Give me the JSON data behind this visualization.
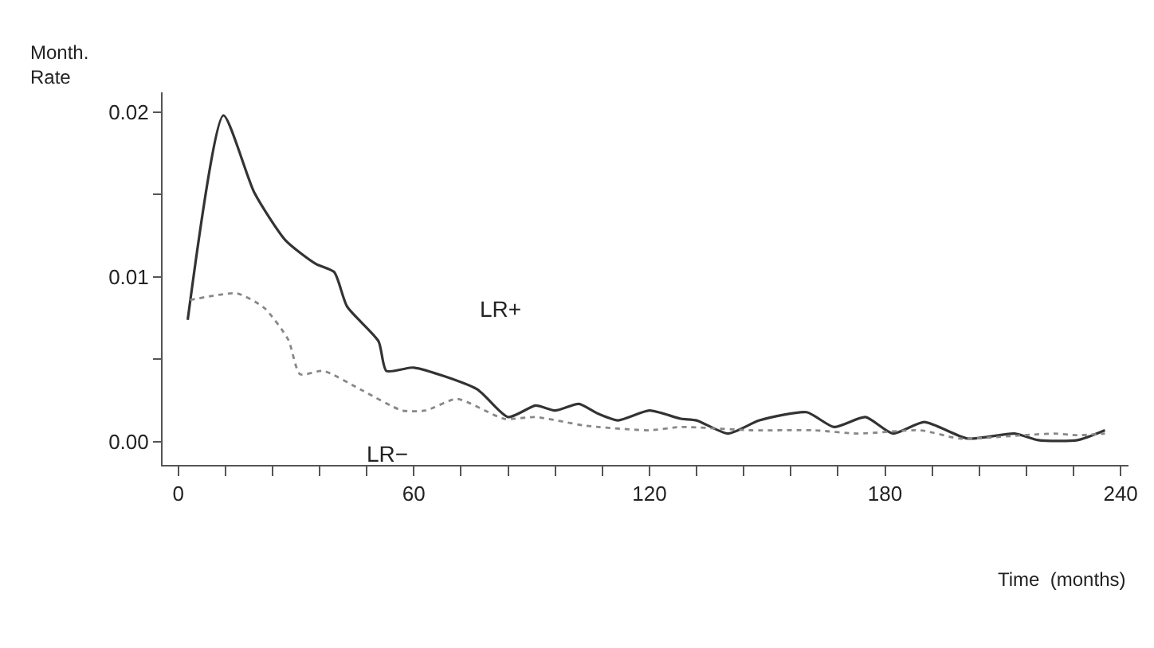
{
  "chart_data": {
    "type": "line",
    "xlabel": "Time  (months)",
    "ylabel": "Month.\nRate",
    "xlim": [
      -4,
      242
    ],
    "ylim": [
      -0.0014,
      0.0212
    ],
    "xticks": [
      0,
      {
        "value": 12,
        "label": null
      },
      {
        "value": 24,
        "label": null
      },
      {
        "value": 36,
        "label": null
      },
      {
        "value": 48,
        "label": null
      },
      60,
      {
        "value": 72,
        "label": null
      },
      {
        "value": 84,
        "label": null
      },
      {
        "value": 96,
        "label": null
      },
      {
        "value": 108,
        "label": null
      },
      120,
      {
        "value": 132,
        "label": null
      },
      {
        "value": 144,
        "label": null
      },
      {
        "value": 156,
        "label": null
      },
      {
        "value": 168,
        "label": null
      },
      180,
      {
        "value": 192,
        "label": null
      },
      {
        "value": 204,
        "label": null
      },
      {
        "value": 216,
        "label": null
      },
      {
        "value": 228,
        "label": null
      },
      240
    ],
    "yticks": [
      {
        "value": 0,
        "label": "0.00"
      },
      {
        "value": 0.005,
        "label": null
      },
      0.01,
      {
        "value": 0.015,
        "label": null
      },
      0.02
    ],
    "legend": false,
    "marker": "none",
    "series": [
      {
        "name": "LR+",
        "color": "#333333",
        "line_style": "solid",
        "x": [
          2.4,
          11.5,
          19.4,
          27.4,
          35,
          39.7,
          43,
          51,
          53,
          60,
          76,
          84,
          91,
          96,
          102,
          107,
          112,
          120,
          128,
          132,
          140,
          148,
          160,
          167,
          175,
          182,
          190,
          201,
          213,
          219,
          229,
          236
        ],
        "values": [
          0.0074,
          0.0198,
          0.0151,
          0.0122,
          0.0108,
          0.0103,
          0.0082,
          0.0061,
          0.0043,
          0.0045,
          0.0032,
          0.0015,
          0.0022,
          0.0019,
          0.0023,
          0.0017,
          0.0013,
          0.0019,
          0.0014,
          0.0013,
          0.0005,
          0.0013,
          0.0018,
          0.0009,
          0.0015,
          0.0005,
          0.0012,
          0.0002,
          0.0005,
          0.0001,
          0.0001,
          0.0007
        ]
      },
      {
        "name": "LR−",
        "color": "#888888",
        "line_style": "dotted",
        "x": [
          3,
          15,
          22,
          28,
          31,
          37,
          47,
          57,
          63,
          71,
          83,
          91,
          103,
          107,
          120,
          128,
          146,
          162,
          173,
          189,
          199,
          215,
          223,
          229,
          236
        ],
        "values": [
          0.0086,
          0.009,
          0.0081,
          0.0062,
          0.0041,
          0.0043,
          0.0031,
          0.0019,
          0.0019,
          0.0026,
          0.0014,
          0.0015,
          0.001,
          0.0009,
          0.0007,
          0.0009,
          0.0007,
          0.0007,
          0.0005,
          0.0007,
          0.0002,
          0.0004,
          0.0005,
          0.0004,
          0.0005
        ]
      }
    ]
  }
}
